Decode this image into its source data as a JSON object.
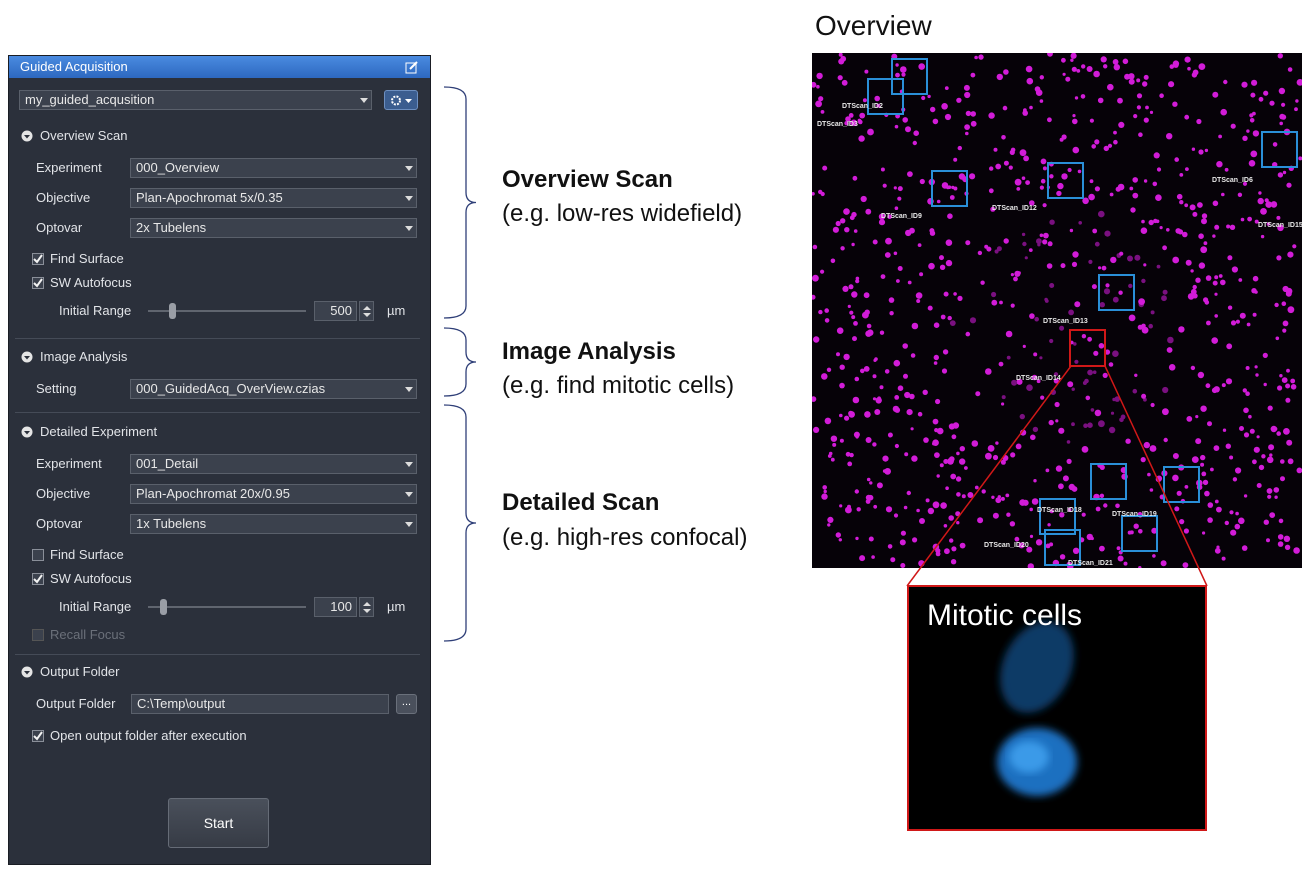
{
  "panel": {
    "title": "Guided Acquisition",
    "workflow": "my_guided_acqusition",
    "sections": [
      {
        "title": "Overview Scan",
        "fields": [
          {
            "label": "Experiment",
            "value": "000_Overview"
          },
          {
            "label": "Objective",
            "value": "Plan-Apochromat 5x/0.35"
          },
          {
            "label": "Optovar",
            "value": "2x Tubelens"
          }
        ],
        "checks": [
          {
            "label": "Find Surface",
            "checked": true,
            "disabled": false
          },
          {
            "label": "SW Autofocus",
            "checked": true,
            "disabled": false
          }
        ],
        "range": {
          "label": "Initial Range",
          "value": "500",
          "unit": "µm"
        }
      },
      {
        "title": "Image Analysis",
        "fields": [
          {
            "label": "Setting",
            "value": "000_GuidedAcq_OverView.czias"
          }
        ]
      },
      {
        "title": "Detailed Experiment",
        "fields": [
          {
            "label": "Experiment",
            "value": "001_Detail"
          },
          {
            "label": "Objective",
            "value": "Plan-Apochromat 20x/0.95"
          },
          {
            "label": "Optovar",
            "value": "1x Tubelens"
          }
        ],
        "checks": [
          {
            "label": "Find Surface",
            "checked": false,
            "disabled": false
          },
          {
            "label": "SW Autofocus",
            "checked": true,
            "disabled": false
          }
        ],
        "range": {
          "label": "Initial Range",
          "value": "100",
          "unit": "µm"
        },
        "checks_after": [
          {
            "label": "Recall Focus",
            "checked": false,
            "disabled": true
          }
        ]
      },
      {
        "title": "Output Folder",
        "folder": {
          "label": "Output Folder",
          "value": "C:\\Temp\\output",
          "browse": "..."
        },
        "checks": [
          {
            "label": "Open output folder after execution",
            "checked": true,
            "disabled": false
          }
        ]
      }
    ],
    "start": "Start"
  },
  "annotations": [
    {
      "title": "Overview Scan",
      "subtitle": "(e.g. low-res widefield)"
    },
    {
      "title": "Image Analysis",
      "subtitle": "(e.g. find mitotic cells)"
    },
    {
      "title": "Detailed Scan",
      "subtitle": "(e.g. high-res confocal)"
    }
  ],
  "overview": {
    "title": "Overview",
    "labels": [
      "DTScan_ID2",
      "DTScan_ID3",
      "DTScan_ID6",
      "DTScan_ID9",
      "DTScan_ID12",
      "DTScan_ID15",
      "DTScan_ID13",
      "DTScan_ID14",
      "DTScan_ID18",
      "DTScan_ID19",
      "DTScan_ID20",
      "DTScan_ID21"
    ],
    "inset_title": "Mitotic cells"
  }
}
